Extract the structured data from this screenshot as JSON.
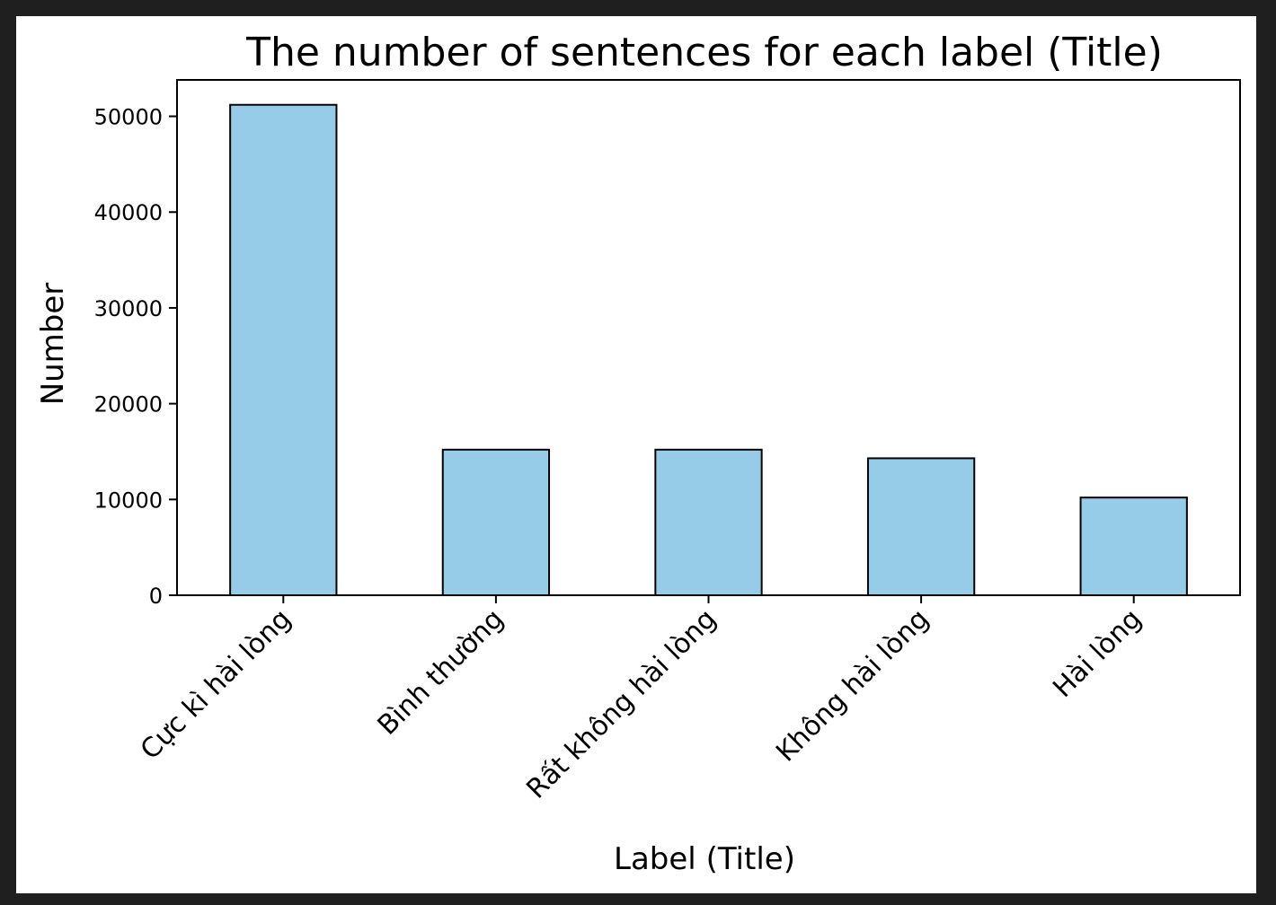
{
  "chart_data": {
    "type": "bar",
    "title": "The number of sentences for each label (Title)",
    "xlabel": "Label (Title)",
    "ylabel": "Number",
    "categories": [
      "Cực kì hài lòng",
      "Bình thường",
      "Rất không hài lòng",
      "Không hài lòng",
      "Hài lòng"
    ],
    "values": [
      51200,
      15200,
      15200,
      14300,
      10200
    ],
    "ylim": [
      0,
      53800
    ],
    "yticks": [
      0,
      10000,
      20000,
      30000,
      40000,
      50000
    ],
    "grid": false,
    "bar_color": "#97cce9",
    "edge_color": "#000000"
  }
}
